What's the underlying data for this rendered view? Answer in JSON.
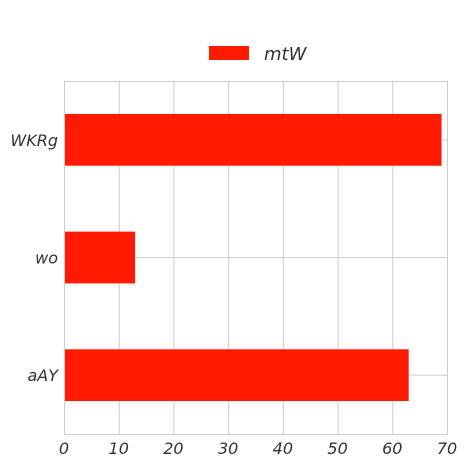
{
  "chart_data": {
    "type": "bar",
    "orientation": "horizontal",
    "categories": [
      "WKRg",
      "wo",
      "aAY"
    ],
    "series": [
      {
        "name": "mtW",
        "values": [
          69,
          13,
          63
        ],
        "color": "#ff1a00"
      }
    ],
    "xlim": [
      0,
      70
    ],
    "xticks": [
      0,
      10,
      20,
      30,
      40,
      50,
      60,
      70
    ],
    "grid": true,
    "legend": "top-center",
    "title": "",
    "xlabel": "",
    "ylabel": ""
  }
}
